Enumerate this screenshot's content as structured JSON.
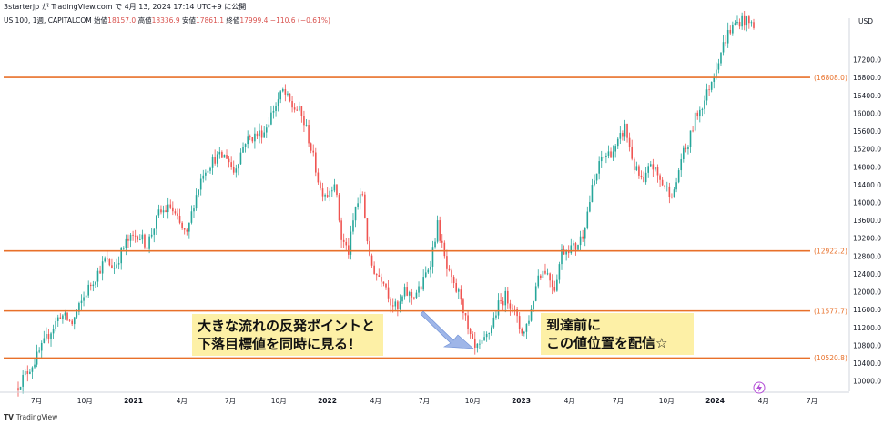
{
  "header": {
    "publisher": "3starterjp が TradingView.com で 4月 13, 2024 17:14 UTC+9 に公開",
    "symbol": "US 100, 1週, CAPITALCOM",
    "ohlc": [
      {
        "label": "始値",
        "value": "18157.0"
      },
      {
        "label": "高値",
        "value": "18336.9"
      },
      {
        "label": "安値",
        "value": "17861.1"
      },
      {
        "label": "終値",
        "value": "17999.4"
      }
    ],
    "change": "−110.6 (−0.61%)"
  },
  "currency": "USD",
  "annotations": {
    "left_note": [
      "大きな流れの反発ポイントと",
      "下落目標値を同時に見る！"
    ],
    "right_note": [
      "到達前に",
      "この値位置を配信☆"
    ]
  },
  "footer": {
    "brand": "TV",
    "name": "TradingView"
  },
  "colors": {
    "up": "#26a69a",
    "down": "#ef5350",
    "level": "#e8702a",
    "note_bg": "#fdf0a6",
    "arrow": "#9fb6e8"
  },
  "chart_data": {
    "type": "candlestick",
    "yrange": [
      9800,
      17700
    ],
    "y_ticks": [
      10000,
      10400,
      10800,
      11200,
      11600,
      12000,
      12400,
      12800,
      13200,
      13600,
      14000,
      14400,
      14800,
      15200,
      15600,
      16000,
      16400,
      16800,
      17200
    ],
    "x_ticks": [
      "7月",
      "10月",
      "2021",
      "4月",
      "7月",
      "10月",
      "2022",
      "4月",
      "7月",
      "10月",
      "2023",
      "4月",
      "7月",
      "10月",
      "2024",
      "4月",
      "7月"
    ],
    "levels": [
      {
        "value": 16808.0,
        "label": "(16808.0)"
      },
      {
        "value": 12922.2,
        "label": "(12922.2)"
      },
      {
        "value": 11577.7,
        "label": "(11577.7)"
      },
      {
        "value": 10520.8,
        "label": "(10520.8)"
      }
    ],
    "path_points": [
      [
        0,
        9850
      ],
      [
        8,
        10450
      ],
      [
        14,
        11050
      ],
      [
        19,
        11500
      ],
      [
        24,
        11300
      ],
      [
        30,
        12000
      ],
      [
        38,
        12700
      ],
      [
        42,
        12550
      ],
      [
        47,
        13100
      ],
      [
        52,
        13300
      ],
      [
        56,
        13050
      ],
      [
        61,
        13750
      ],
      [
        66,
        13900
      ],
      [
        70,
        13500
      ],
      [
        73,
        13250
      ],
      [
        76,
        14000
      ],
      [
        80,
        14700
      ],
      [
        85,
        15000
      ],
      [
        90,
        15050
      ],
      [
        93,
        14700
      ],
      [
        98,
        15400
      ],
      [
        102,
        15500
      ],
      [
        106,
        15600
      ],
      [
        110,
        16100
      ],
      [
        114,
        16500
      ],
      [
        118,
        16150
      ],
      [
        121,
        16050
      ],
      [
        124,
        15650
      ],
      [
        127,
        15000
      ],
      [
        130,
        14300
      ],
      [
        133,
        14200
      ],
      [
        136,
        14500
      ],
      [
        139,
        13200
      ],
      [
        142,
        12900
      ],
      [
        145,
        13900
      ],
      [
        148,
        14200
      ],
      [
        151,
        12700
      ],
      [
        154,
        12400
      ],
      [
        157,
        12300
      ],
      [
        160,
        11800
      ],
      [
        163,
        11600
      ],
      [
        166,
        12000
      ],
      [
        169,
        11900
      ],
      [
        173,
        12100
      ],
      [
        177,
        12700
      ],
      [
        180,
        13500
      ],
      [
        184,
        12500
      ],
      [
        187,
        12100
      ],
      [
        190,
        11900
      ],
      [
        193,
        11100
      ],
      [
        196,
        10700
      ],
      [
        199,
        10800
      ],
      [
        202,
        11100
      ],
      [
        206,
        11700
      ],
      [
        209,
        11900
      ],
      [
        212,
        11700
      ],
      [
        215,
        11200
      ],
      [
        217,
        11100
      ],
      [
        220,
        11600
      ],
      [
        223,
        12400
      ],
      [
        226,
        12500
      ],
      [
        230,
        12100
      ],
      [
        233,
        12900
      ],
      [
        236,
        13000
      ],
      [
        239,
        13000
      ],
      [
        242,
        13300
      ],
      [
        246,
        14300
      ],
      [
        250,
        15000
      ],
      [
        253,
        15100
      ],
      [
        256,
        15200
      ],
      [
        260,
        15700
      ],
      [
        264,
        14800
      ],
      [
        268,
        14400
      ],
      [
        271,
        14900
      ],
      [
        275,
        14500
      ],
      [
        278,
        14300
      ],
      [
        281,
        14200
      ],
      [
        284,
        15000
      ],
      [
        287,
        15300
      ],
      [
        290,
        15900
      ],
      [
        294,
        16300
      ],
      [
        298,
        16900
      ],
      [
        301,
        17400
      ],
      [
        304,
        17800
      ],
      [
        307,
        18000
      ],
      [
        310,
        18100
      ],
      [
        314,
        18000
      ]
    ]
  }
}
